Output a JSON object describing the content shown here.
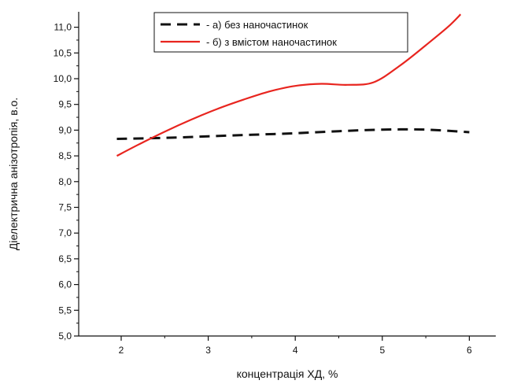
{
  "chart_data": {
    "type": "line",
    "title": "",
    "xlabel": "концентрація ХД, %",
    "ylabel": "Діелектрична анізотропія, в.о.",
    "xlim": [
      1.5,
      6.5
    ],
    "ylim": [
      5.0,
      11.25
    ],
    "x_ticks": [
      2,
      3,
      4,
      5,
      6
    ],
    "x_tick_labels": [
      "2",
      "3",
      "4",
      "5",
      "6"
    ],
    "y_ticks": [
      5.0,
      5.5,
      6.0,
      6.5,
      7.0,
      7.5,
      8.0,
      8.5,
      9.0,
      9.5,
      10.0,
      10.5,
      11.0
    ],
    "y_tick_labels": [
      "5,0",
      "5,5",
      "6,0",
      "6,5",
      "7,0",
      "7,5",
      "8,0",
      "8,5",
      "9,0",
      "9,5",
      "10,0",
      "10,5",
      "11,0"
    ],
    "grid": false,
    "legend_position": "top-center",
    "series": [
      {
        "name": "- а) без наночастинок",
        "color": "#111111",
        "style": "dashed",
        "x": [
          1.95,
          2.5,
          3.0,
          3.5,
          4.0,
          4.5,
          5.0,
          5.5,
          6.0
        ],
        "y": [
          8.83,
          8.85,
          8.88,
          8.91,
          8.94,
          8.98,
          9.01,
          9.01,
          8.96
        ]
      },
      {
        "name": "- б) з вмістом наночастинок",
        "color": "#e8251f",
        "style": "solid",
        "x": [
          1.95,
          2.2,
          2.5,
          2.8,
          3.1,
          3.4,
          3.7,
          4.0,
          4.3,
          4.6,
          4.9,
          5.2,
          5.5,
          5.75,
          5.9
        ],
        "y": [
          8.5,
          8.72,
          8.97,
          9.2,
          9.41,
          9.59,
          9.75,
          9.86,
          9.9,
          9.88,
          9.93,
          10.25,
          10.65,
          11.0,
          11.25
        ]
      }
    ]
  }
}
